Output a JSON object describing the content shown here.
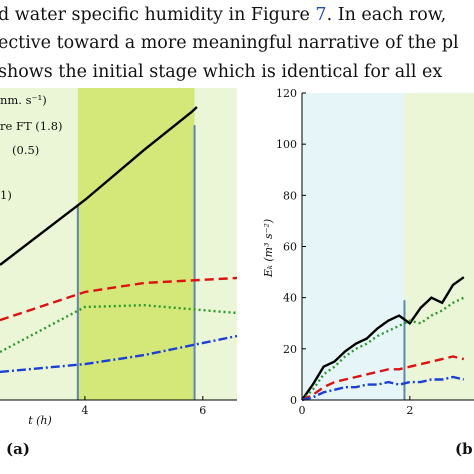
{
  "text": {
    "lines": [
      [
        "d water specific humidity in Figure ",
        "7",
        ". In each row,"
      ],
      [
        "ective toward a more meaningful narrative of the pl"
      ],
      [
        "shows the initial stage which is identical for all ex"
      ]
    ]
  },
  "chart_data": [
    {
      "type": "line",
      "panel_label": "(a)",
      "xlabel": "t (h)",
      "legend_title": "nm. s⁻¹)",
      "xlim": [
        2.56,
        6.58
      ],
      "xticks": [
        4,
        6
      ],
      "ylim": [
        0,
        10
      ],
      "background": "#eaf6d6",
      "bands": [
        {
          "from": 3.88,
          "to": 5.86,
          "color": "#d4e87a"
        }
      ],
      "vlines": [
        {
          "x": 3.88,
          "ymax": 6.25,
          "color": "#5a86b8"
        },
        {
          "x": 5.86,
          "ymax": 8.81,
          "color": "#5a86b8"
        }
      ],
      "series": [
        {
          "name": "re FT  (1.8)",
          "color": "#000000",
          "dash": "",
          "x": [
            2.56,
            4,
            5,
            5.81,
            5.9
          ],
          "values": [
            4.33,
            6.41,
            8.01,
            9.23,
            9.39
          ]
        },
        {
          "name": "(0.5)",
          "color": "#e01010",
          "dash": "9 5",
          "x": [
            2.56,
            4,
            5,
            6.58
          ],
          "values": [
            2.56,
            3.46,
            3.75,
            3.91
          ]
        },
        {
          "name": "1)",
          "color": "#2a9a2a",
          "dash": "2 3",
          "x": [
            2.56,
            4,
            5,
            6.58
          ],
          "values": [
            1.54,
            2.98,
            3.04,
            2.79
          ]
        },
        {
          "name": null,
          "color": "#1a3fd8",
          "dash": "9 3 2 3",
          "x": [
            2.56,
            4,
            5,
            6.58
          ],
          "values": [
            0.9,
            1.15,
            1.44,
            2.05
          ]
        }
      ]
    },
    {
      "type": "line",
      "panel_label": "(b",
      "ylabel": "Eₖ (m³ s⁻²)",
      "xlim": [
        0,
        3.19
      ],
      "xticks": [
        0,
        2
      ],
      "ylim": [
        0,
        120
      ],
      "yticks": [
        0,
        20,
        40,
        60,
        80,
        100,
        120
      ],
      "background": "#ffffff",
      "bands": [
        {
          "from": 0,
          "to": 1.9,
          "color": "#e6f6f8"
        },
        {
          "from": 1.9,
          "to": 3.19,
          "color": "#eaf6d6"
        }
      ],
      "vlines": [
        {
          "x": 1.9,
          "ymax": 39,
          "color": "#5a86b8"
        }
      ],
      "series": [
        {
          "color": "#000000",
          "dash": "",
          "x": [
            0,
            0.2,
            0.4,
            0.6,
            0.8,
            1,
            1.2,
            1.4,
            1.6,
            1.8,
            2,
            2.2,
            2.4,
            2.6,
            2.8,
            3
          ],
          "values": [
            0,
            6,
            13,
            15,
            19,
            22,
            24,
            28,
            31,
            33,
            30,
            36,
            40,
            38,
            45,
            48
          ]
        },
        {
          "color": "#2a9a2a",
          "dash": "2 3",
          "x": [
            0,
            0.2,
            0.4,
            0.6,
            0.8,
            1,
            1.2,
            1.4,
            1.6,
            1.8,
            2,
            2.2,
            2.4,
            2.6,
            2.8,
            3
          ],
          "values": [
            0,
            4,
            10,
            13,
            17,
            20,
            22,
            25,
            27,
            29,
            31,
            30,
            33,
            35,
            38,
            40
          ]
        },
        {
          "color": "#e01010",
          "dash": "9 5",
          "x": [
            0,
            0.2,
            0.4,
            0.6,
            0.8,
            1,
            1.2,
            1.4,
            1.6,
            1.8,
            2,
            2.2,
            2.4,
            2.6,
            2.8,
            3
          ],
          "values": [
            0,
            2,
            5,
            7,
            8,
            9,
            10,
            11,
            12,
            12,
            13,
            14,
            15,
            16,
            17,
            16
          ]
        },
        {
          "color": "#1a3fd8",
          "dash": "9 3 2 3",
          "x": [
            0,
            0.2,
            0.4,
            0.6,
            0.8,
            1,
            1.2,
            1.4,
            1.6,
            1.8,
            2,
            2.2,
            2.4,
            2.6,
            2.8,
            3
          ],
          "values": [
            0,
            1,
            3,
            4,
            5,
            5,
            6,
            6,
            7,
            6,
            7,
            7,
            8,
            8,
            9,
            8
          ]
        }
      ]
    }
  ]
}
